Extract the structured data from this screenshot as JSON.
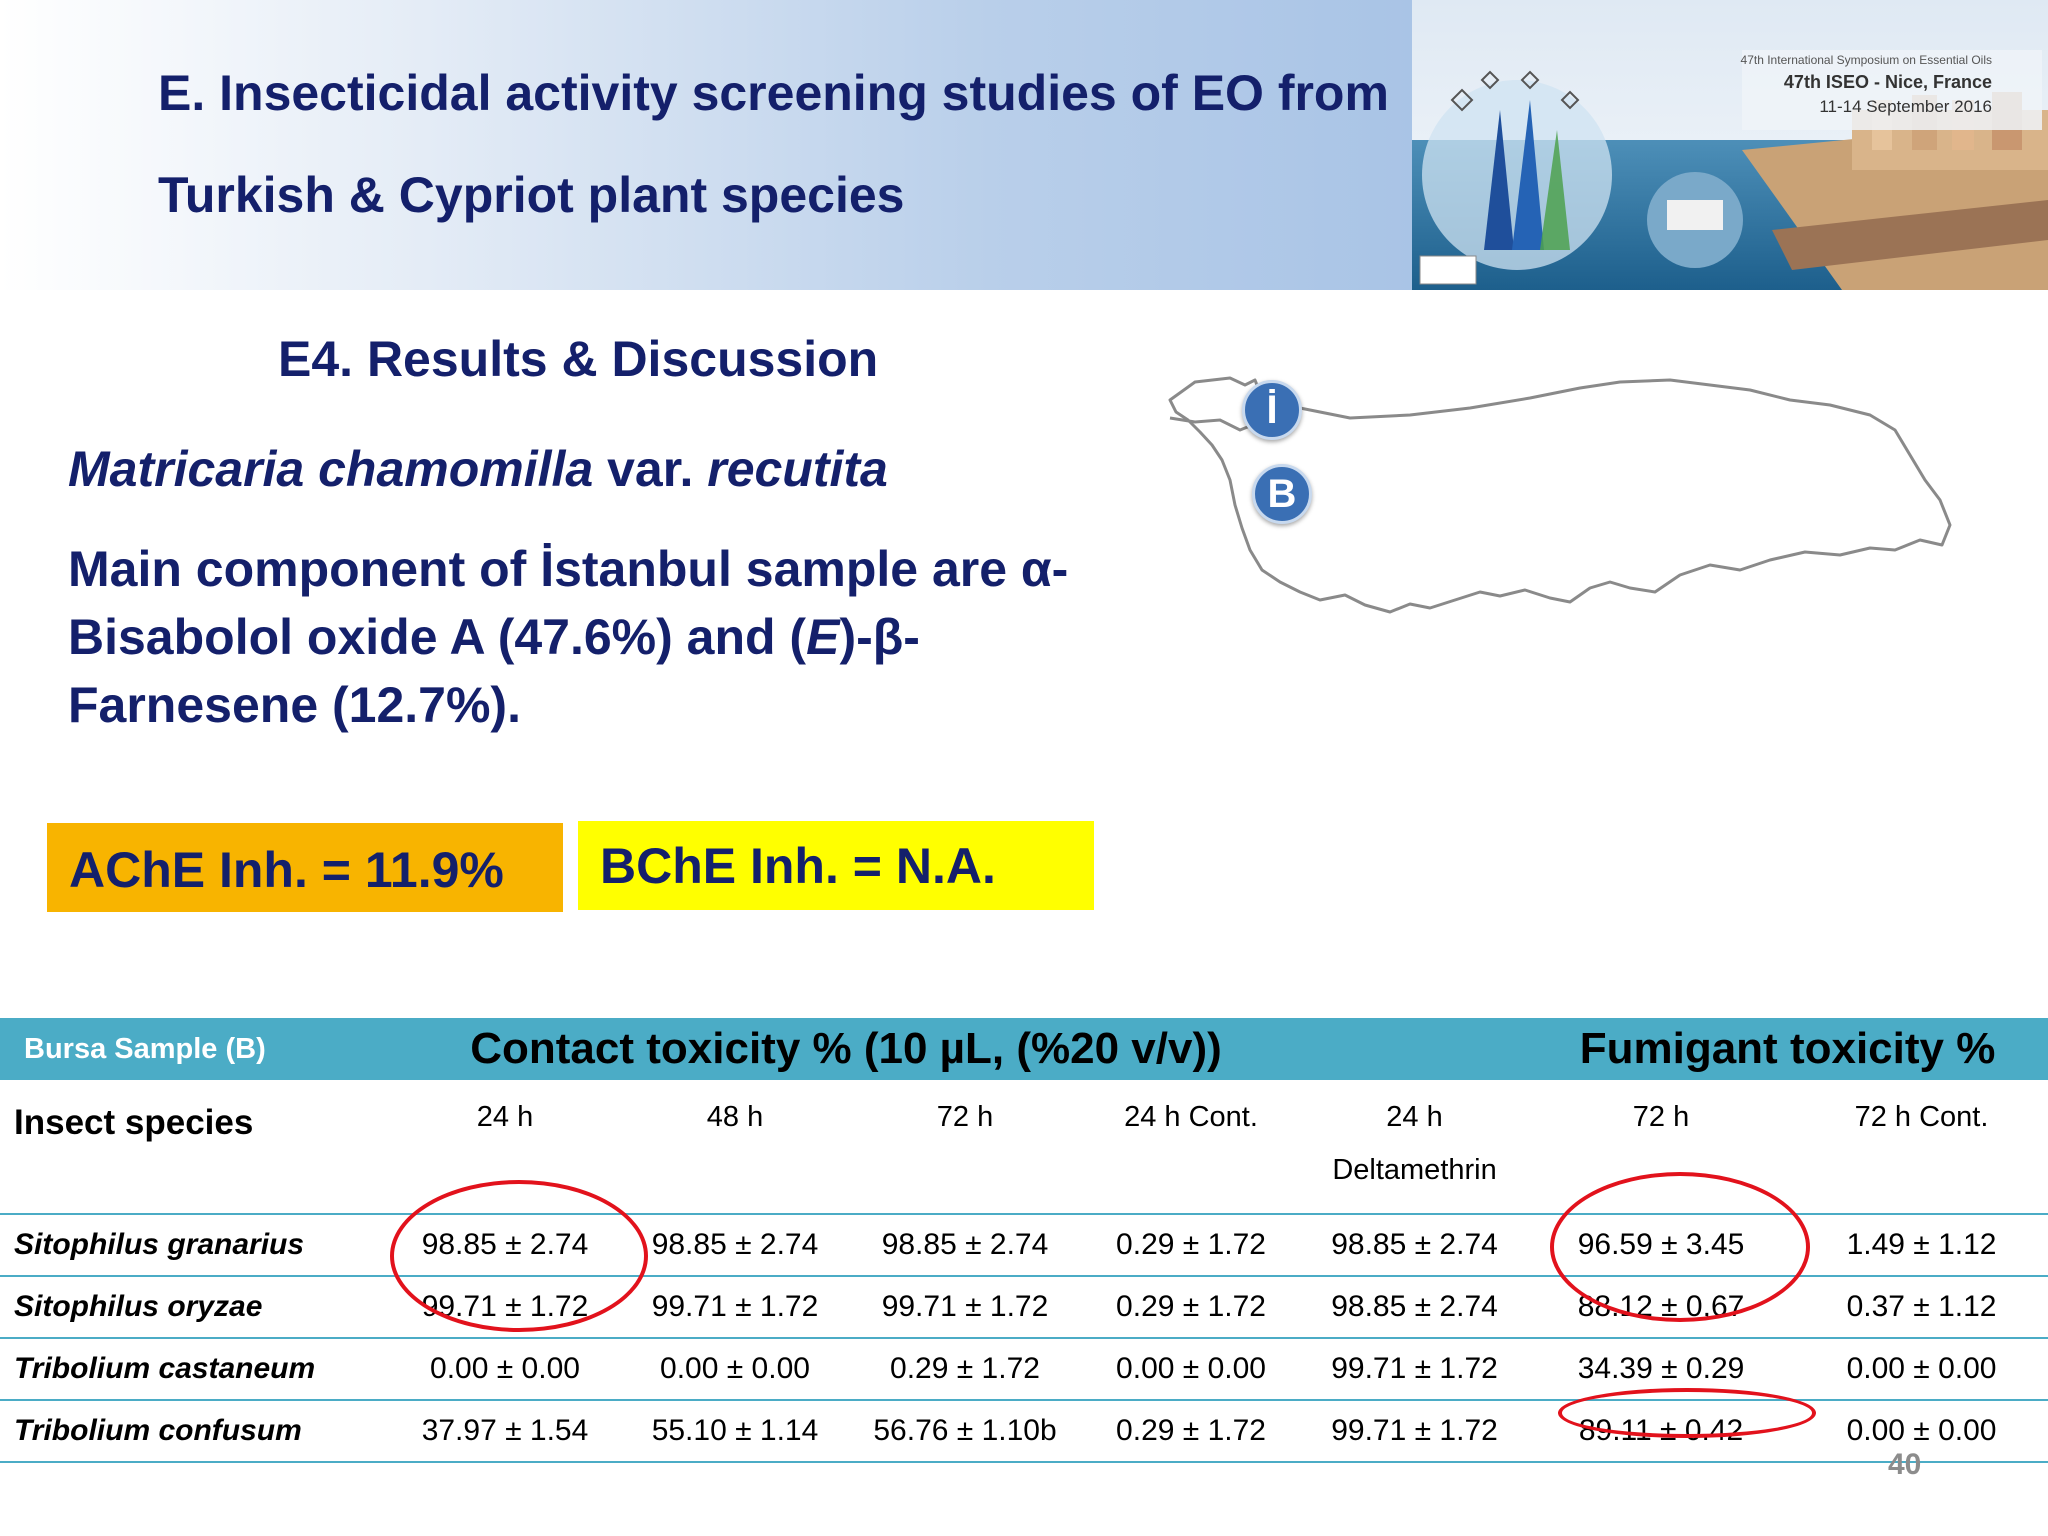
{
  "header": {
    "title_line1": "E. Insecticidal activity screening studies of EO from",
    "title_line2": "Turkish & Cypriot plant species"
  },
  "banner": {
    "line1": "47th International Symposium on Essential Oils",
    "line2": "47th ISEO - Nice, France",
    "line3": "11-14 September 2016"
  },
  "section": {
    "subtitle": "E4. Results & Discussion",
    "species_genus": "Matricaria chamomilla",
    "species_var": " var. ",
    "species_subsp": "recutita",
    "main_prefix": "Main component of İstanbul sample are α-Bisabolol oxide A (47.6%) and (",
    "main_e": "E",
    "main_suffix": ")-β-Farnesene (12.7%)."
  },
  "map": {
    "marker_i": "İ",
    "marker_b": "B"
  },
  "boxes": {
    "ache": "AChE Inh. = 11.9%",
    "bche": "BChE Inh. = N.A."
  },
  "table": {
    "sample_label": "Bursa Sample (B)",
    "contact_title": "Contact toxicity  % (10 µL, (%20 v/v))",
    "fumigant_title": "Fumigant toxicity %",
    "insect_header": "Insect species",
    "columns": [
      "24 h",
      "48 h",
      "72 h",
      "24 h Cont.",
      "24 h",
      "72 h",
      "72 h Cont."
    ],
    "deltamethrin": "Deltamethrin",
    "rows": [
      {
        "species": "Sitophilus granarius",
        "values": [
          "98.85 ± 2.74",
          "98.85 ± 2.74",
          "98.85 ± 2.74",
          "0.29 ± 1.72",
          "98.85 ± 2.74",
          "96.59 ± 3.45",
          "1.49 ± 1.12"
        ]
      },
      {
        "species": "Sitophilus oryzae",
        "values": [
          "99.71 ± 1.72",
          "99.71 ± 1.72",
          "99.71 ± 1.72",
          "0.29 ± 1.72",
          "98.85 ± 2.74",
          "88.12 ± 0,67",
          "0.37 ± 1.12"
        ]
      },
      {
        "species": "Tribolium castaneum",
        "values": [
          "0.00 ± 0.00",
          "0.00 ± 0.00",
          "0.29 ± 1.72",
          "0.00 ± 0.00",
          "99.71 ± 1.72",
          "34.39 ± 0.29",
          "0.00 ± 0.00"
        ]
      },
      {
        "species": "Tribolium confusum",
        "values": [
          "37.97 ± 1.54",
          "55.10 ± 1.14",
          "56.76 ± 1.10b",
          "0.29 ± 1.72",
          "99.71 ± 1.72",
          "89.11 ± 0.42",
          "0.00 ± 0.00"
        ]
      }
    ]
  },
  "page_number": "40",
  "colors": {
    "title": "#14206b",
    "ache_bg": "#f8b400",
    "bche_bg": "#ffff00",
    "table_header": "#4bacc6",
    "highlight": "#e2121c"
  }
}
